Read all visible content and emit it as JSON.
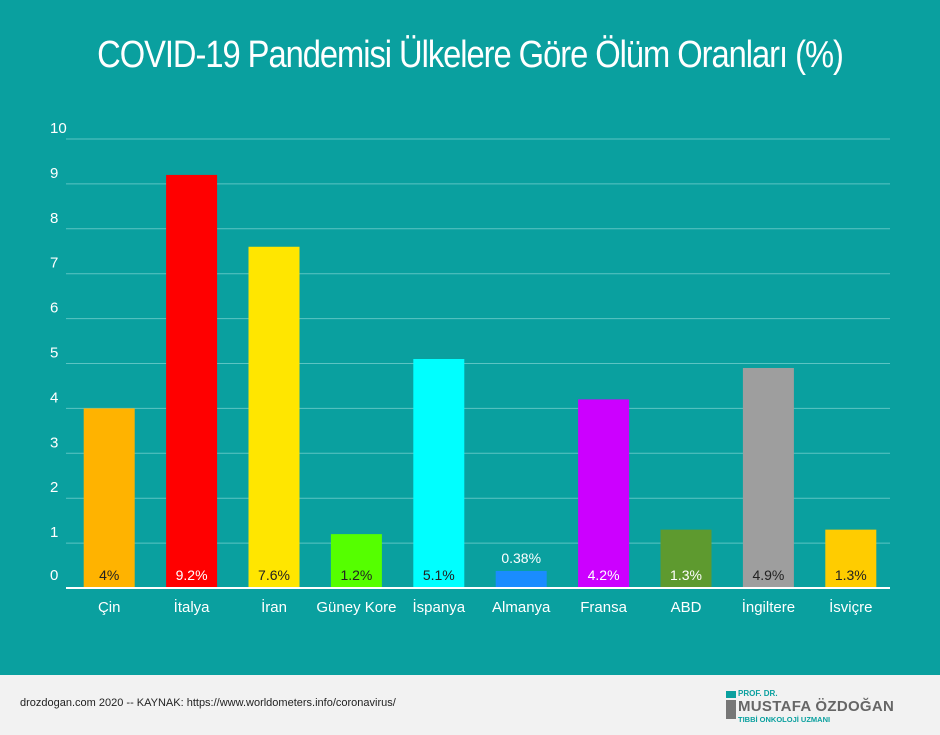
{
  "chart_data": {
    "type": "bar",
    "title": "COVID-19 Pandemisi Ülkelere Göre Ölüm Oranları (%)",
    "xlabel": "",
    "ylabel": "",
    "ylim": [
      0,
      10
    ],
    "yticks": [
      0,
      1,
      2,
      3,
      4,
      5,
      6,
      7,
      8,
      9,
      10
    ],
    "grid": true,
    "categories": [
      "Çin",
      "İtalya",
      "İran",
      "Güney Kore",
      "İspanya",
      "Almanya",
      "Fransa",
      "ABD",
      "İngiltere",
      "İsviçre"
    ],
    "values": [
      4,
      9.2,
      7.6,
      1.2,
      5.1,
      0.38,
      4.2,
      1.3,
      4.9,
      1.3
    ],
    "data_labels": [
      "4%",
      "9.2%",
      "7.6%",
      "1.2%",
      "5.1%",
      "0.38%",
      "4.2%",
      "1.3%",
      "4.9%",
      "1.3%"
    ],
    "colors": [
      "#ffb300",
      "#ff0000",
      "#ffe600",
      "#55ff00",
      "#00ffff",
      "#1a8cff",
      "#cc00ff",
      "#5e9a2f",
      "#9e9e9e",
      "#ffcc00"
    ],
    "label_colors": [
      "#222222",
      "#ffffff",
      "#222222",
      "#222222",
      "#222222",
      "#ffffff",
      "#ffffff",
      "#ffffff",
      "#222222",
      "#222222"
    ]
  },
  "footer": {
    "source": "drozdogan.com 2020 -- KAYNAK: https://www.worldometers.info/coronavirus/",
    "brand_prefix": "PROF. DR.",
    "brand_name": "MUSTAFA ÖZDOĞAN",
    "brand_subtitle": "TIBBİ ONKOLOJİ UZMANI"
  }
}
